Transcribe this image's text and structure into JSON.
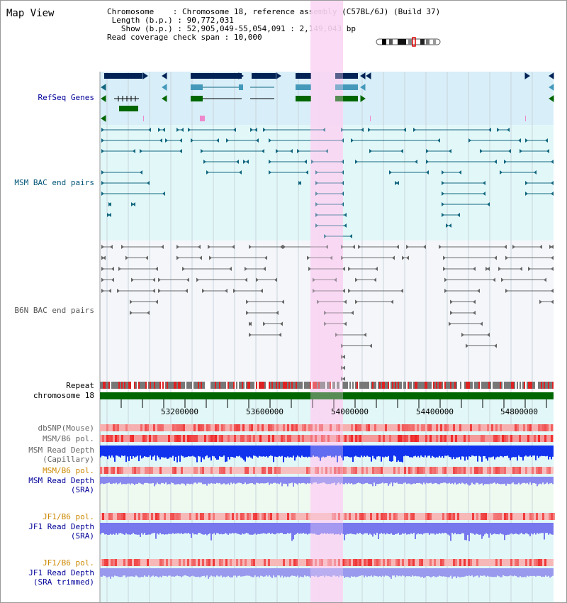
{
  "app_title": "Map View",
  "info": {
    "chromosome_key": "Chromosome",
    "chromosome_val": "Chromosome 18, reference assembly (C57BL/6J) (Build 37)",
    "length_key": "Length (b.p.)",
    "length_val": "90,772,031",
    "show_key": "Show (b.p.)",
    "show_val": "52,905,049-55,054,091 : 2,149,043 bp",
    "coverage_key": "Read coverage check span",
    "coverage_val": "10,000"
  },
  "tracks": {
    "refseq": "RefSeq Genes",
    "msm_bac": "MSM BAC end pairs",
    "b6n_bac": "B6N BAC end pairs",
    "repeat": "Repeat",
    "chromosome": "chromosome 18",
    "dbsnp": "dbSNP(Mouse)",
    "msm_b6_pol_1": "MSM/B6 pol.",
    "msm_read_depth_cap_1": "MSM Read Depth",
    "msm_read_depth_cap_2": "(Capillary)",
    "msm_b6_pol_2": "MSM/B6 pol.",
    "msm_read_depth_sra_1": "MSM Read Depth",
    "msm_read_depth_sra_2": "(SRA)",
    "jf1_b6_pol_1": "JF1/B6 pol.",
    "jf1_read_depth_sra_1": "JF1 Read Depth",
    "jf1_read_depth_sra_2": "(SRA)",
    "jf1_b6_pol_2": "JF1/B6 pol.",
    "jf1_read_depth_trim_1": "JF1 Read Depth",
    "jf1_read_depth_trim_2": "(SRA trimmed)"
  },
  "ruler": {
    "ticks": [
      "53200000",
      "53600000",
      "54000000",
      "54400000",
      "54800000"
    ]
  },
  "colors": {
    "highlight": "#f9d6f3",
    "refseq_bg": "#d8eef8",
    "bac_bg": "#e2f8f8",
    "gene_navy": "#002255",
    "gene_teal": "#4499bb",
    "gene_green": "#006600",
    "msm_line": "#11667f",
    "b6n_line": "#666666",
    "chromosome_bar": "#006600",
    "repeat_red": "#dd2222",
    "depth_blue": "#1133ee",
    "depth_light": "#7777ee"
  },
  "icons": {
    "cytoband": "chromosome-ideogram-icon"
  }
}
